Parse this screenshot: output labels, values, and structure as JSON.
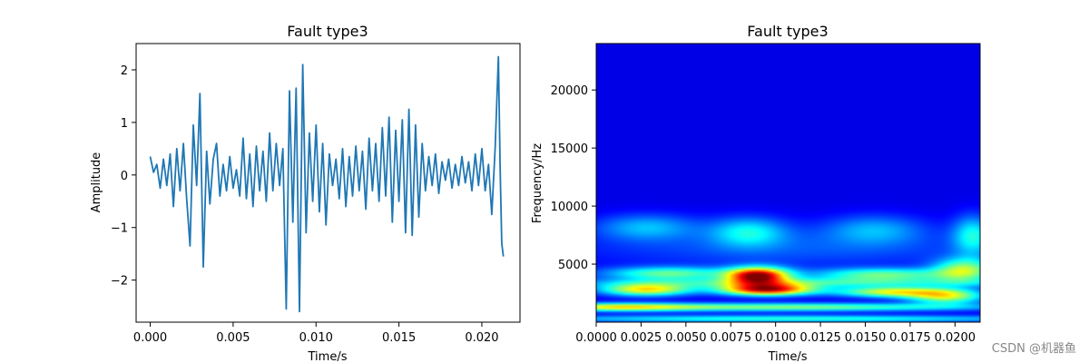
{
  "watermark": "CSDN @机器鱼",
  "chart_data": [
    {
      "type": "line",
      "title": "Fault type3",
      "xlabel": "Time/s",
      "ylabel": "Amplitude",
      "xlim": [
        -0.00085,
        0.0223
      ],
      "ylim": [
        -2.8,
        2.5
      ],
      "xticks": [
        0.0,
        0.005,
        0.01,
        0.015,
        0.02
      ],
      "xtick_labels": [
        "0.000",
        "0.005",
        "0.010",
        "0.015",
        "0.020"
      ],
      "yticks": [
        -2,
        -1,
        0,
        1,
        2
      ],
      "ytick_labels": [
        "−2",
        "−1",
        "0",
        "1",
        "2"
      ],
      "grid": false,
      "series_color": "#1f77b4",
      "x": [
        0.0,
        0.0002,
        0.0004,
        0.0006,
        0.0008,
        0.001,
        0.0012,
        0.0014,
        0.0016,
        0.0018,
        0.002,
        0.0022,
        0.0024,
        0.0026,
        0.0028,
        0.003,
        0.0032,
        0.0034,
        0.0036,
        0.0038,
        0.004,
        0.0042,
        0.0044,
        0.0046,
        0.0048,
        0.005,
        0.0052,
        0.0054,
        0.0056,
        0.0058,
        0.006,
        0.0062,
        0.0064,
        0.0066,
        0.0068,
        0.007,
        0.0072,
        0.0074,
        0.0076,
        0.0078,
        0.008,
        0.0082,
        0.0084,
        0.0086,
        0.0088,
        0.009,
        0.0092,
        0.0094,
        0.0096,
        0.0098,
        0.01,
        0.0102,
        0.0104,
        0.0106,
        0.0108,
        0.011,
        0.0112,
        0.0114,
        0.0116,
        0.0118,
        0.012,
        0.0122,
        0.0124,
        0.0126,
        0.0128,
        0.013,
        0.0132,
        0.0134,
        0.0136,
        0.0138,
        0.014,
        0.0142,
        0.0144,
        0.0146,
        0.0148,
        0.015,
        0.0152,
        0.0154,
        0.0156,
        0.0158,
        0.016,
        0.0162,
        0.0164,
        0.0166,
        0.0168,
        0.017,
        0.0172,
        0.0174,
        0.0176,
        0.0178,
        0.018,
        0.0182,
        0.0184,
        0.0186,
        0.0188,
        0.019,
        0.0192,
        0.0194,
        0.0196,
        0.0198,
        0.02,
        0.0202,
        0.0204,
        0.0206,
        0.0208,
        0.021,
        0.0211,
        0.0212,
        0.0213
      ],
      "y": [
        0.35,
        0.05,
        0.2,
        -0.25,
        0.3,
        -0.2,
        0.4,
        -0.6,
        0.5,
        -0.3,
        0.6,
        -0.45,
        -1.35,
        0.95,
        -0.2,
        1.55,
        -1.75,
        0.45,
        -0.55,
        0.3,
        0.6,
        -0.4,
        0.2,
        -0.3,
        0.35,
        -0.25,
        0.1,
        -0.4,
        0.7,
        -0.45,
        0.4,
        -0.6,
        0.55,
        -0.3,
        0.45,
        -0.5,
        0.8,
        -0.3,
        0.6,
        -0.2,
        0.5,
        -2.55,
        1.6,
        -0.9,
        1.65,
        -2.6,
        2.1,
        -1.1,
        0.8,
        -0.5,
        0.95,
        -0.7,
        0.6,
        -0.95,
        0.4,
        -0.2,
        0.3,
        -0.45,
        0.5,
        -0.6,
        0.35,
        -0.4,
        0.55,
        -0.3,
        0.45,
        -0.65,
        0.7,
        -0.3,
        0.6,
        -0.5,
        0.9,
        -0.4,
        1.1,
        -0.9,
        0.85,
        -0.5,
        1.05,
        -1.1,
        1.25,
        -1.15,
        0.95,
        -0.8,
        0.6,
        -0.3,
        0.35,
        -0.2,
        0.4,
        -0.35,
        0.25,
        -0.1,
        0.3,
        -0.25,
        0.2,
        -0.2,
        0.35,
        -0.15,
        0.25,
        -0.3,
        0.4,
        -0.2,
        0.5,
        -0.3,
        0.2,
        -0.75,
        0.5,
        2.25,
        0.15,
        -1.3,
        -1.55
      ]
    },
    {
      "type": "heatmap",
      "title": "Fault type3",
      "xlabel": "Time/s",
      "ylabel": "Frequency/Hz",
      "xlim": [
        0.0,
        0.0214
      ],
      "ylim": [
        0,
        24000
      ],
      "xticks": [
        0.0,
        0.0025,
        0.005,
        0.0075,
        0.01,
        0.0125,
        0.015,
        0.0175,
        0.02
      ],
      "xtick_labels": [
        "0.0000",
        "0.0025",
        "0.0050",
        "0.0075",
        "0.0100",
        "0.0125",
        "0.0150",
        "0.0175",
        "0.0200"
      ],
      "yticks": [
        5000,
        10000,
        15000,
        20000
      ],
      "ytick_labels": [
        "5000",
        "10000",
        "15000",
        "20000"
      ],
      "colormap": "jet",
      "background_color": "#00007f",
      "hotspots": [
        {
          "t": 0.009,
          "f": 4000,
          "intensity": 0.95,
          "spread_t": 0.0012,
          "spread_f": 500
        },
        {
          "t": 0.0095,
          "f": 2800,
          "intensity": 0.9,
          "spread_t": 0.0018,
          "spread_f": 350
        },
        {
          "t": 0.0028,
          "f": 2800,
          "intensity": 0.6,
          "spread_t": 0.0018,
          "spread_f": 380
        },
        {
          "t": 0.0165,
          "f": 2600,
          "intensity": 0.55,
          "spread_t": 0.0022,
          "spread_f": 320
        },
        {
          "t": 0.004,
          "f": 4200,
          "intensity": 0.4,
          "spread_t": 0.0025,
          "spread_f": 400
        },
        {
          "t": 0.016,
          "f": 4100,
          "intensity": 0.4,
          "spread_t": 0.0028,
          "spread_f": 400
        },
        {
          "t": 0.0105,
          "f": 1300,
          "intensity": 0.45,
          "spread_t": 0.008,
          "spread_f": 250
        },
        {
          "t": 0.001,
          "f": 1300,
          "intensity": 0.4,
          "spread_t": 0.003,
          "spread_f": 250
        },
        {
          "t": 0.0085,
          "f": 7800,
          "intensity": 0.28,
          "spread_t": 0.0015,
          "spread_f": 900
        },
        {
          "t": 0.0028,
          "f": 8200,
          "intensity": 0.22,
          "spread_t": 0.002,
          "spread_f": 800
        },
        {
          "t": 0.0155,
          "f": 8000,
          "intensity": 0.2,
          "spread_t": 0.002,
          "spread_f": 900
        },
        {
          "t": 0.021,
          "f": 7500,
          "intensity": 0.3,
          "spread_t": 0.0008,
          "spread_f": 1200
        },
        {
          "t": 0.0205,
          "f": 4500,
          "intensity": 0.45,
          "spread_t": 0.0012,
          "spread_f": 700
        },
        {
          "t": 0.0195,
          "f": 2200,
          "intensity": 0.5,
          "spread_t": 0.0015,
          "spread_f": 450
        },
        {
          "t": 0.0108,
          "f": 6300,
          "intensity": 0.12,
          "spread_t": 0.009,
          "spread_f": 1200
        },
        {
          "t": 0.0115,
          "f": 3400,
          "intensity": 0.3,
          "spread_t": 0.009,
          "spread_f": 300
        },
        {
          "t": 0.0108,
          "f": 300,
          "intensity": 0.35,
          "spread_t": 0.011,
          "spread_f": 220
        }
      ]
    }
  ]
}
